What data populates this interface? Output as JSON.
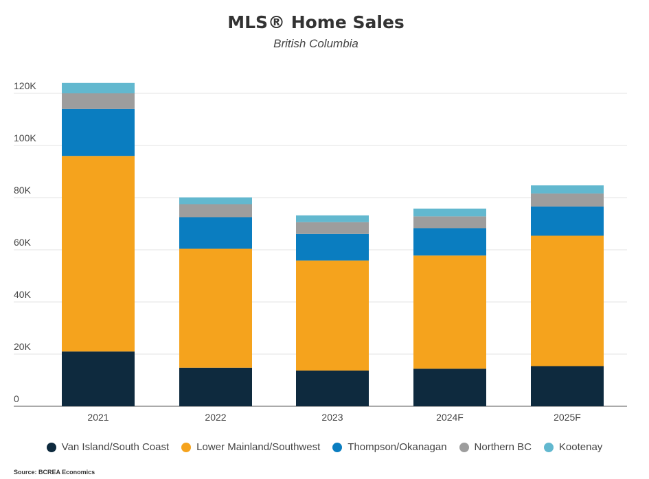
{
  "chart_data": {
    "type": "bar",
    "stacked": true,
    "title": "MLS® Home Sales",
    "subtitle": "British Columbia",
    "categories": [
      "2021",
      "2022",
      "2023",
      "2024F",
      "2025F"
    ],
    "series": [
      {
        "name": "Van Island/South Coast",
        "color": "#0e2a3e",
        "values": [
          21000,
          14800,
          13700,
          14400,
          15400
        ]
      },
      {
        "name": "Lower Mainland/Southwest",
        "color": "#f5a31d",
        "values": [
          75000,
          45600,
          42200,
          43400,
          50000
        ]
      },
      {
        "name": "Thompson/Okanagan",
        "color": "#0a7dc0",
        "values": [
          18000,
          12100,
          10200,
          10500,
          11200
        ]
      },
      {
        "name": "Northern BC",
        "color": "#9d9d9d",
        "values": [
          6000,
          5000,
          4500,
          4500,
          5000
        ]
      },
      {
        "name": "Kootenay",
        "color": "#62b8cf",
        "values": [
          4000,
          2600,
          2600,
          3000,
          3100
        ]
      }
    ],
    "yticks": [
      "0",
      "20K",
      "40K",
      "60K",
      "80K",
      "100K",
      "120K"
    ],
    "ylim": [
      0,
      120000
    ],
    "grid": true,
    "legend": "bottom"
  },
  "source": "Source: BCREA Economics"
}
